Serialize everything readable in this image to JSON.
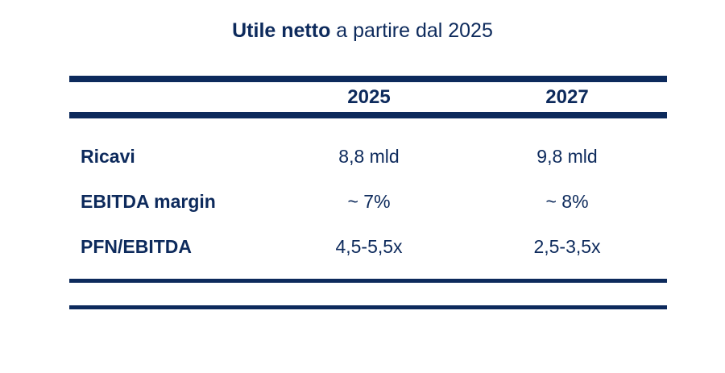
{
  "title": {
    "bold": "Utile netto",
    "rest": " a partire dal 2025"
  },
  "table": {
    "columns": [
      "2025",
      "2027"
    ],
    "rows": [
      {
        "label": "Ricavi",
        "v2025": "8,8 mld",
        "v2027": "9,8 mld"
      },
      {
        "label": "EBITDA margin",
        "v2025": "~ 7%",
        "v2027": "~ 8%"
      },
      {
        "label": "PFN/EBITDA",
        "v2025": "4,5-5,5x",
        "v2027": "2,5-3,5x"
      }
    ]
  },
  "colors": {
    "primary": "#0d2a5c"
  }
}
